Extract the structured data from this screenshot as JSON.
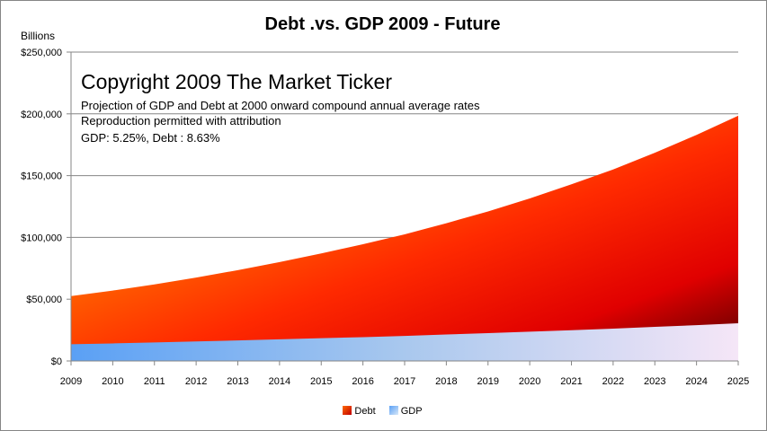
{
  "chart_data": {
    "type": "area",
    "title": "Debt .vs. GDP 2009 - Future",
    "ylabel": "Billions",
    "xlabel": "",
    "ylim": [
      0,
      250000
    ],
    "y_ticks": [
      "$0",
      "$50,000",
      "$100,000",
      "$150,000",
      "$200,000",
      "$250,000"
    ],
    "y_tick_values": [
      0,
      50000,
      100000,
      150000,
      200000,
      250000
    ],
    "categories": [
      "2009",
      "2010",
      "2011",
      "2012",
      "2013",
      "2014",
      "2015",
      "2016",
      "2017",
      "2018",
      "2019",
      "2020",
      "2021",
      "2022",
      "2023",
      "2024",
      "2025"
    ],
    "series": [
      {
        "name": "Debt",
        "values": [
          52500,
          57000,
          62000,
          67500,
          73500,
          80000,
          87000,
          94500,
          102500,
          111500,
          121000,
          131500,
          143000,
          155000,
          168500,
          183000,
          198500
        ]
      },
      {
        "name": "GDP",
        "values": [
          13500,
          14200,
          15000,
          15800,
          16600,
          17500,
          18400,
          19300,
          20300,
          21400,
          22500,
          23700,
          24900,
          26200,
          27600,
          29000,
          30500
        ]
      }
    ],
    "stacking": "overlapping",
    "grid": "horizontal",
    "legend_position": "bottom",
    "colors": {
      "debt_gradient": [
        "#ffc000",
        "#ff0000",
        "#4a0000"
      ],
      "gdp_gradient": [
        "#5aa0f5",
        "#cce0f5",
        "#f5e6f7"
      ]
    },
    "annotations": [
      "Copyright 2009 The Market Ticker",
      "Projection of GDP and Debt at 2000  onward compound annual average rates",
      "Reproduction permitted with attribution",
      "GDP: 5.25%, Debt : 8.63%"
    ]
  }
}
